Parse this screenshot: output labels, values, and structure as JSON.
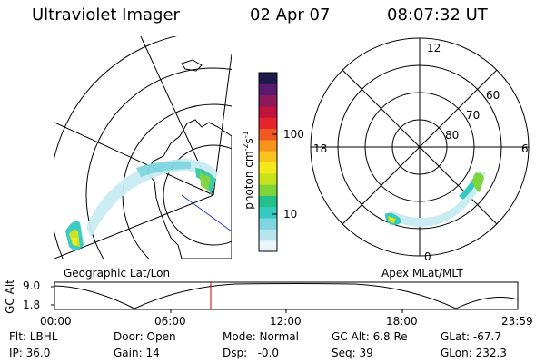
{
  "header": {
    "instrument": "Ultraviolet Imager",
    "date": "02 Apr 07",
    "time": "08:07:32 UT"
  },
  "geo_panel": {
    "label": "Geographic Lat/Lon"
  },
  "mlt_panel": {
    "label": "Apex MLat/MLT",
    "mlt_labels": {
      "top": "12",
      "left": "18",
      "right": "6",
      "bottom": "0"
    },
    "lat_labels": [
      "60",
      "70",
      "80"
    ]
  },
  "colorbar": {
    "label": "photon cm",
    "label_sup1": "-2",
    "label_mid": "s",
    "label_sup2": "-1",
    "ticks": [
      "100",
      "10"
    ],
    "colors": [
      "#e8f4f8",
      "#b8e4ec",
      "#7fd6e0",
      "#35c9c0",
      "#25c08a",
      "#7fd43a",
      "#c8e21e",
      "#f4e81a",
      "#f7c31c",
      "#f7941d",
      "#f05a22",
      "#e5242d",
      "#c0143c",
      "#8a1a5a",
      "#5a1a6e",
      "#1c1a4a"
    ]
  },
  "altitude_plot": {
    "ylabel": "GC Alt",
    "y_ticks": [
      "9.0",
      "1.8"
    ],
    "x_ticks": [
      "00:00",
      "06:00",
      "12:00",
      "18:00",
      "23:59"
    ]
  },
  "footer": {
    "row1": [
      {
        "key": "flt",
        "text": "Flt: LBHL"
      },
      {
        "key": "door",
        "text": "Door: Open"
      },
      {
        "key": "mode",
        "text": "Mode: Normal"
      },
      {
        "key": "gcalt",
        "text": "GC Alt: 6.8 Re"
      },
      {
        "key": "glat",
        "text": "GLat: -67.7"
      }
    ],
    "row2": [
      {
        "key": "ip",
        "text": "IP: 36.0"
      },
      {
        "key": "gain",
        "text": "Gain: 14"
      },
      {
        "key": "dsp",
        "text": "Dsp:   -0.0"
      },
      {
        "key": "seq",
        "text": "Seq: 39"
      },
      {
        "key": "glon",
        "text": "GLon: 232.3"
      }
    ]
  }
}
